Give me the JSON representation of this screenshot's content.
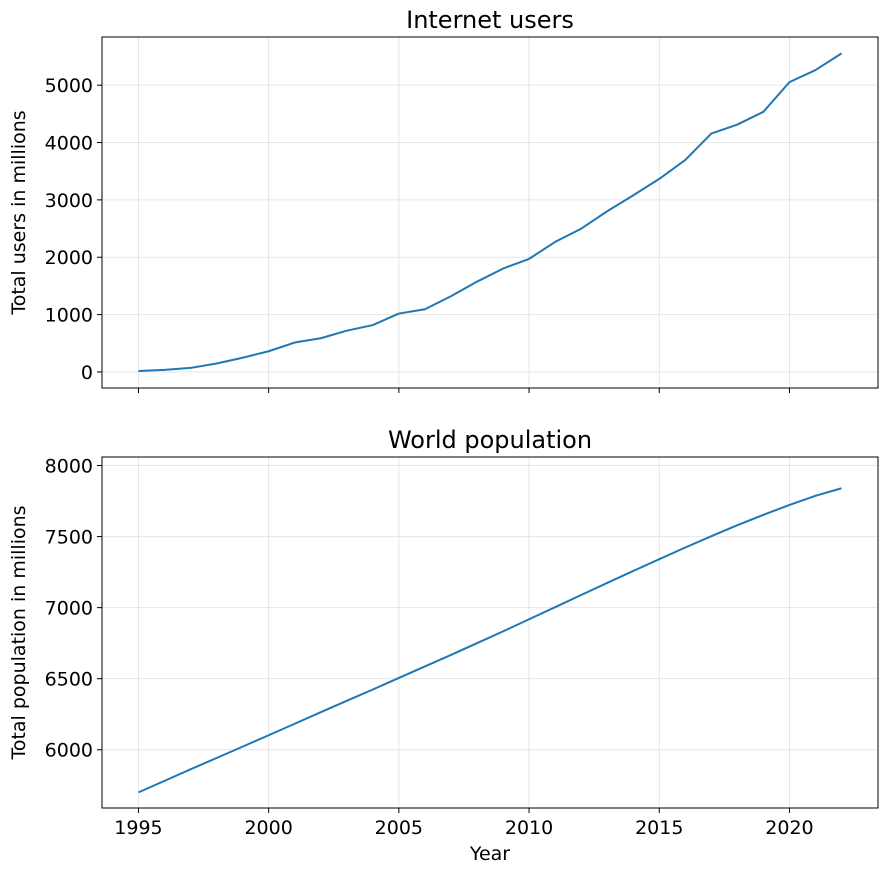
{
  "chart_data": [
    {
      "type": "line",
      "title": "Internet users",
      "xlabel": "",
      "ylabel": "Total users in millions",
      "xlim": [
        1993.6,
        2023.4
      ],
      "ylim": [
        -280,
        5840
      ],
      "xticks": [
        1995,
        2000,
        2005,
        2010,
        2015,
        2020
      ],
      "xtick_labels_visible": false,
      "yticks": [
        0,
        1000,
        2000,
        3000,
        4000,
        5000
      ],
      "grid": true,
      "color": "#1f77b4",
      "x": [
        1995,
        1996,
        1997,
        1998,
        1999,
        2000,
        2001,
        2002,
        2003,
        2004,
        2005,
        2006,
        2007,
        2008,
        2009,
        2010,
        2011,
        2012,
        2013,
        2014,
        2015,
        2016,
        2017,
        2018,
        2019,
        2020,
        2021,
        2022
      ],
      "values": [
        16,
        36,
        70,
        147,
        248,
        361,
        513,
        587,
        719,
        817,
        1018,
        1093,
        1319,
        1574,
        1802,
        1971,
        2267,
        2497,
        2802,
        3079,
        3366,
        3696,
        4156,
        4313,
        4536,
        5053,
        5263,
        5555
      ]
    },
    {
      "type": "line",
      "title": "World population",
      "xlabel": "Year",
      "ylabel": "Total population in millions",
      "xlim": [
        1993.6,
        2023.4
      ],
      "ylim": [
        5590,
        8060
      ],
      "xticks": [
        1995,
        2000,
        2005,
        2010,
        2015,
        2020
      ],
      "xtick_labels_visible": true,
      "yticks": [
        6000,
        6500,
        7000,
        7500,
        8000
      ],
      "grid": true,
      "color": "#1f77b4",
      "x": [
        1995,
        1996,
        1997,
        1998,
        1999,
        2000,
        2001,
        2002,
        2003,
        2004,
        2005,
        2006,
        2007,
        2008,
        2009,
        2010,
        2011,
        2012,
        2013,
        2014,
        2015,
        2016,
        2017,
        2018,
        2019,
        2020,
        2021,
        2022
      ],
      "values": [
        5700,
        5781,
        5862,
        5942,
        6022,
        6102,
        6183,
        6264,
        6344,
        6424,
        6505,
        6586,
        6667,
        6750,
        6833,
        6918,
        7003,
        7089,
        7174,
        7258,
        7341,
        7423,
        7503,
        7580,
        7653,
        7723,
        7787,
        7840
      ]
    }
  ]
}
